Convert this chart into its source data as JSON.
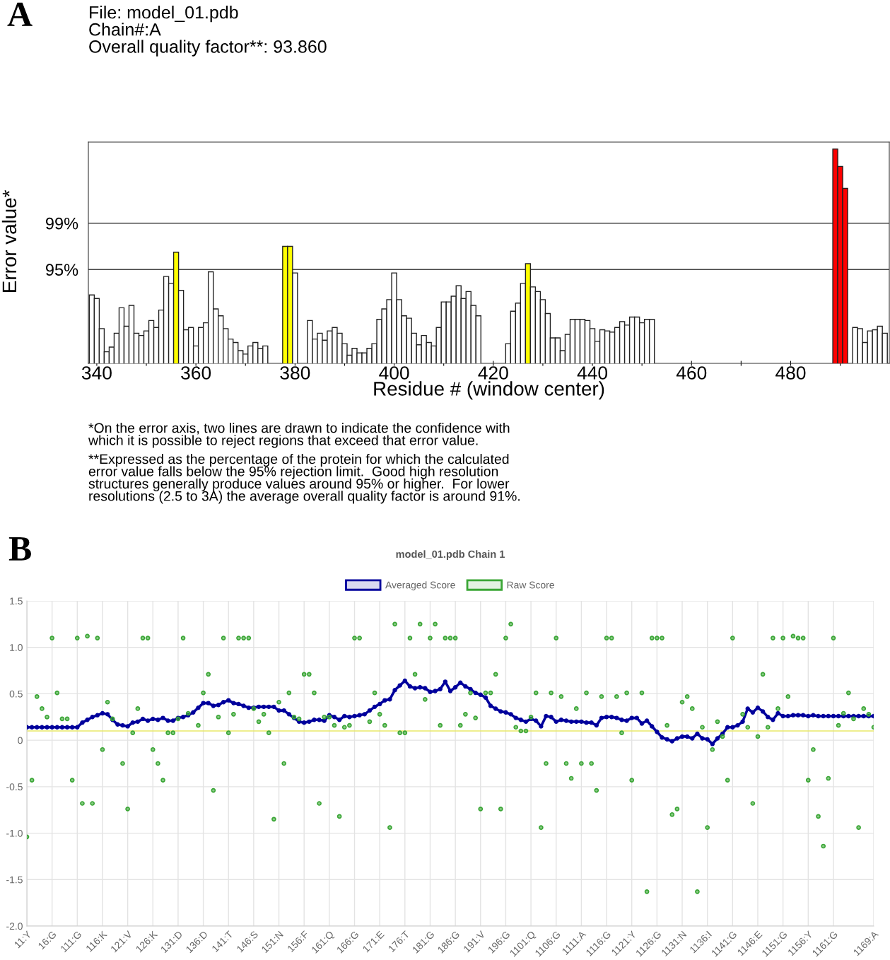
{
  "chart_data": [
    {
      "type": "bar",
      "title": "File: model_01.pdb\nChain#:A\nOverall quality factor**: 93.860",
      "xlabel": "Residue # (window center)",
      "ylabel": "Error value*",
      "annotations": [
        "A",
        "*On the error axis, two lines are drawn to indicate the confidence with\nwhich it is possible to reject regions that exceed that error value.",
        "**Expressed as the percentage of the protein for which the calculated\nerror value falls below the 95% rejection limit.  Good high resolution\nstructures generally produce values around 95% or higher.  For lower\nresolutions (2.5 to 3A) the average overall quality factor is around 91%."
      ],
      "x": [
        339,
        340,
        341,
        342,
        343,
        344,
        345,
        346,
        347,
        348,
        349,
        350,
        351,
        352,
        353,
        354,
        355,
        356,
        357,
        358,
        359,
        360,
        361,
        362,
        363,
        364,
        365,
        366,
        367,
        368,
        369,
        370,
        371,
        372,
        373,
        374,
        375,
        376,
        377,
        378,
        379,
        380,
        381,
        382,
        383,
        384,
        385,
        386,
        387,
        388,
        389,
        390,
        391,
        392,
        393,
        394,
        395,
        396,
        397,
        398,
        399,
        400,
        401,
        402,
        403,
        404,
        405,
        406,
        407,
        408,
        409,
        410,
        411,
        412,
        413,
        414,
        415,
        416,
        417,
        418,
        419,
        420,
        421,
        422,
        423,
        424,
        425,
        426,
        427,
        428,
        429,
        430,
        431,
        432,
        433,
        434,
        435,
        436,
        437,
        438,
        439,
        440,
        441,
        442,
        443,
        444,
        445,
        446,
        447,
        448,
        449,
        450,
        451,
        452,
        453,
        454,
        455,
        456,
        457,
        458,
        459,
        460,
        461,
        462,
        463,
        464,
        465,
        466,
        467,
        468,
        469,
        470,
        471,
        472,
        473,
        474,
        475,
        476,
        477,
        478,
        479,
        480,
        481,
        482,
        483,
        484,
        485,
        486,
        487,
        488,
        489,
        490,
        491,
        492,
        493,
        494,
        495,
        496,
        497,
        498,
        499
      ],
      "values": [
        92.8,
        92.5,
        89.9,
        87.9,
        88.3,
        89.5,
        91.7,
        90.1,
        91.9,
        89.5,
        89.3,
        89.7,
        90.6,
        90.0,
        91.5,
        94.4,
        93.8,
        96.5,
        93.2,
        89.8,
        90.0,
        88.4,
        90.0,
        90.4,
        94.8,
        91.6,
        91.0,
        89.9,
        89.0,
        88.7,
        88.0,
        87.7,
        88.4,
        88.7,
        88.2,
        88.4,
        null,
        null,
        null,
        97.0,
        97.0,
        94.7,
        null,
        null,
        90.6,
        89.0,
        89.5,
        88.9,
        89.7,
        90.0,
        89.5,
        88.6,
        87.6,
        88.2,
        87.8,
        87.8,
        88.2,
        88.6,
        90.7,
        91.6,
        92.4,
        94.7,
        92.4,
        91.0,
        90.8,
        89.5,
        88.5,
        89.3,
        88.7,
        88.4,
        90.0,
        92.2,
        92.2,
        92.7,
        93.6,
        92.5,
        93.1,
        91.9,
        91.0,
        null,
        null,
        null,
        null,
        null,
        88.6,
        91.4,
        92.1,
        93.8,
        95.5,
        93.5,
        93.1,
        92.4,
        91.2,
        89.1,
        89.1,
        88.0,
        89.4,
        90.7,
        90.7,
        90.7,
        90.6,
        89.9,
        88.8,
        89.8,
        89.7,
        89.6,
        90.0,
        90.5,
        90.2,
        90.9,
        90.9,
        90.4,
        90.7,
        90.7,
        null,
        null,
        null,
        null,
        null,
        null,
        null,
        null,
        null,
        null,
        null,
        null,
        null,
        null,
        null,
        null,
        null,
        null,
        null,
        null,
        null,
        null,
        null,
        null,
        null,
        null,
        null,
        null,
        null,
        null,
        null,
        null,
        null,
        null,
        null,
        null,
        105.4,
        103.9,
        102.0,
        null,
        90.0,
        89.9,
        88.7,
        89.7,
        89.8,
        90.1,
        89.5
      ],
      "colors": [
        "#ffffff",
        "#ffffff",
        "#ffffff",
        "#ffffff",
        "#ffffff",
        "#ffffff",
        "#ffffff",
        "#ffffff",
        "#ffffff",
        "#ffffff",
        "#ffffff",
        "#ffffff",
        "#ffffff",
        "#ffffff",
        "#ffffff",
        "#ffffff",
        "#ffffff",
        "#ffff00",
        "#ffffff",
        "#ffffff",
        "#ffffff",
        "#ffffff",
        "#ffffff",
        "#ffffff",
        "#ffffff",
        "#ffffff",
        "#ffffff",
        "#ffffff",
        "#ffffff",
        "#ffffff",
        "#ffffff",
        "#ffffff",
        "#ffffff",
        "#ffffff",
        "#ffffff",
        "#ffffff",
        "#ffffff",
        "#ffffff",
        "#ffffff",
        "#ffff00",
        "#ffff00",
        "#ffffff",
        "#ffffff",
        "#ffffff",
        "#ffffff",
        "#ffffff",
        "#ffffff",
        "#ffffff",
        "#ffffff",
        "#ffffff",
        "#ffffff",
        "#ffffff",
        "#ffffff",
        "#ffffff",
        "#ffffff",
        "#ffffff",
        "#ffffff",
        "#ffffff",
        "#ffffff",
        "#ffffff",
        "#ffffff",
        "#ffffff",
        "#ffffff",
        "#ffffff",
        "#ffffff",
        "#ffffff",
        "#ffffff",
        "#ffffff",
        "#ffffff",
        "#ffffff",
        "#ffffff",
        "#ffffff",
        "#ffffff",
        "#ffffff",
        "#ffffff",
        "#ffffff",
        "#ffffff",
        "#ffffff",
        "#ffffff",
        "#ffffff",
        "#ffffff",
        "#ffffff",
        "#ffffff",
        "#ffffff",
        "#ffffff",
        "#ffffff",
        "#ffffff",
        "#ffffff",
        "#ffff00",
        "#ffffff",
        "#ffffff",
        "#ffffff",
        "#ffffff",
        "#ffffff",
        "#ffffff",
        "#ffffff",
        "#ffffff",
        "#ffffff",
        "#ffffff",
        "#ffffff",
        "#ffffff",
        "#ffffff",
        "#ffffff",
        "#ffffff",
        "#ffffff",
        "#ffffff",
        "#ffffff",
        "#ffffff",
        "#ffffff",
        "#ffffff",
        "#ffffff",
        "#ffffff",
        "#ffffff",
        "#ffffff",
        "#ffffff",
        "#ffffff",
        "#ffffff",
        "#ffffff",
        "#ffffff",
        "#ffffff",
        "#ffffff",
        "#ffffff",
        "#ffffff",
        "#ffffff",
        "#ffffff",
        "#ffffff",
        "#ffffff",
        "#ffffff",
        "#ffffff",
        "#ffffff",
        "#ffffff",
        "#ffffff",
        "#ffffff",
        "#ffffff",
        "#ffffff",
        "#ffffff",
        "#ffffff",
        "#ffffff",
        "#ffffff",
        "#ffffff",
        "#ffffff",
        "#ffffff",
        "#ffffff",
        "#ffffff",
        "#ffffff",
        "#ffffff",
        "#ffffff",
        "#ffffff",
        "#ffffff",
        "#ffffff",
        "#ff0000",
        "#ff0000",
        "#ff0000",
        "#ffffff",
        "#ffffff",
        "#ffffff",
        "#ffffff",
        "#ffffff",
        "#ffffff",
        "#ffffff",
        "#ffffff"
      ],
      "xlim": [
        338.3,
        499.9
      ],
      "xticks": [
        340,
        {
          "value": 350,
          "label": null
        },
        360,
        {
          "value": 370,
          "label": null
        },
        380,
        {
          "value": 390,
          "label": null
        },
        400,
        {
          "value": 410,
          "label": null
        },
        420,
        {
          "value": 430,
          "label": null
        },
        440,
        {
          "value": 450,
          "label": null
        },
        460,
        {
          "value": 470,
          "label": null
        },
        480,
        {
          "value": 490,
          "label": null
        }
      ],
      "ylim": [
        86.9,
        106.0
      ],
      "yticks": [
        {
          "value": 95,
          "label": "95%"
        },
        {
          "value": 99,
          "label": "99%"
        }
      ],
      "grid": "y"
    },
    {
      "type": "line",
      "title": "model_01.pdb Chain 1",
      "annotations": [
        "B"
      ],
      "categories": [
        "11:Y",
        null,
        null,
        null,
        null,
        "16:G",
        null,
        null,
        null,
        null,
        "111:G",
        null,
        null,
        null,
        null,
        "116:K",
        null,
        null,
        null,
        null,
        "121:V",
        null,
        null,
        null,
        null,
        "126:K",
        null,
        null,
        null,
        null,
        "131:D",
        null,
        null,
        null,
        null,
        "136:D",
        null,
        null,
        null,
        null,
        "141:T",
        null,
        null,
        null,
        null,
        "146:S",
        null,
        null,
        null,
        null,
        "151:N",
        null,
        null,
        null,
        null,
        "156:F",
        null,
        null,
        null,
        null,
        "161:Q",
        null,
        null,
        null,
        null,
        "166:G",
        null,
        null,
        null,
        null,
        "171:E",
        null,
        null,
        null,
        null,
        "176:T",
        null,
        null,
        null,
        null,
        "181:G",
        null,
        null,
        null,
        null,
        "186:G",
        null,
        null,
        null,
        null,
        "191:V",
        null,
        null,
        null,
        null,
        "196:G",
        null,
        null,
        null,
        null,
        "1101:Q",
        null,
        null,
        null,
        null,
        "1106:G",
        null,
        null,
        null,
        null,
        "1111:A",
        null,
        null,
        null,
        null,
        "1116:G",
        null,
        null,
        null,
        null,
        "1121:Y",
        null,
        null,
        null,
        null,
        "1126:G",
        null,
        null,
        null,
        null,
        "1131:N",
        null,
        null,
        null,
        null,
        "1136:I",
        null,
        null,
        null,
        null,
        "1141:G",
        null,
        null,
        null,
        null,
        "1146:E",
        null,
        null,
        null,
        null,
        "1151:G",
        null,
        null,
        null,
        null,
        "1156:Y",
        null,
        null,
        null,
        null,
        "1161:G",
        null,
        null,
        null,
        null,
        null,
        null,
        null,
        "1169:A"
      ],
      "series": [
        {
          "name": "Averaged Score",
          "type": "line",
          "color": "#00009c",
          "marker": "circle",
          "values": [
            0.14,
            0.14,
            0.14,
            0.14,
            0.14,
            0.14,
            0.14,
            0.14,
            0.14,
            0.14,
            0.14,
            0.19,
            0.22,
            0.25,
            0.27,
            0.29,
            0.28,
            0.22,
            0.17,
            0.16,
            0.15,
            0.19,
            0.2,
            0.23,
            0.21,
            0.23,
            0.22,
            0.24,
            0.21,
            0.21,
            0.24,
            0.25,
            0.27,
            0.3,
            0.35,
            0.4,
            0.4,
            0.37,
            0.38,
            0.41,
            0.43,
            0.4,
            0.39,
            0.37,
            0.35,
            0.35,
            0.36,
            0.36,
            0.36,
            0.36,
            0.32,
            0.32,
            0.28,
            0.24,
            0.2,
            0.19,
            0.2,
            0.22,
            0.22,
            0.21,
            0.27,
            0.25,
            0.22,
            0.26,
            0.25,
            0.26,
            0.27,
            0.28,
            0.32,
            0.36,
            0.39,
            0.43,
            0.44,
            0.54,
            0.59,
            0.64,
            0.58,
            0.56,
            0.57,
            0.56,
            0.52,
            0.53,
            0.55,
            0.63,
            0.53,
            0.57,
            0.62,
            0.58,
            0.55,
            0.51,
            0.49,
            0.46,
            0.37,
            0.34,
            0.31,
            0.3,
            0.28,
            0.24,
            0.22,
            0.2,
            0.23,
            0.21,
            0.15,
            0.26,
            0.25,
            0.2,
            0.22,
            0.21,
            0.2,
            0.2,
            0.2,
            0.19,
            0.19,
            0.16,
            0.24,
            0.25,
            0.25,
            0.24,
            0.22,
            0.21,
            0.24,
            0.24,
            0.18,
            0.21,
            0.15,
            0.09,
            0.03,
            0.01,
            -0.01,
            0.02,
            0.04,
            0.04,
            0.02,
            0.07,
            0.02,
            0.01,
            -0.04,
            0.02,
            0.07,
            0.14,
            0.14,
            0.16,
            0.2,
            0.34,
            0.3,
            0.35,
            0.31,
            0.25,
            0.22,
            0.29,
            0.26,
            0.26,
            0.27,
            0.27,
            0.27,
            0.26,
            0.27,
            0.26,
            0.26,
            0.26,
            0.26,
            0.26,
            0.26,
            0.26,
            0.26,
            0.26,
            0.26,
            0.26,
            0.26
          ]
        },
        {
          "name": "Raw Score",
          "type": "scatter",
          "color": "#3aa635",
          "marker": "circle",
          "values": [
            -1.04,
            -0.43,
            0.47,
            0.34,
            0.25,
            1.1,
            0.51,
            0.23,
            0.23,
            -0.43,
            1.1,
            -0.68,
            1.12,
            -0.68,
            1.1,
            -0.1,
            0.41,
            0.23,
            null,
            -0.25,
            -0.74,
            0.08,
            0.34,
            1.1,
            1.1,
            -0.1,
            -0.25,
            -0.43,
            0.08,
            0.08,
            0.23,
            1.1,
            0.29,
            null,
            0.16,
            0.51,
            0.71,
            -0.54,
            0.25,
            1.1,
            0.08,
            0.28,
            1.1,
            1.1,
            1.1,
            0.34,
            0.2,
            0.28,
            0.08,
            -0.85,
            0.41,
            -0.25,
            0.51,
            0.25,
            0.23,
            0.71,
            0.71,
            0.51,
            -0.68,
            0.25,
            0.25,
            0.16,
            -0.82,
            0.14,
            0.16,
            1.1,
            1.1,
            null,
            0.2,
            0.51,
            0.28,
            0.16,
            -0.94,
            1.25,
            0.08,
            0.08,
            1.1,
            0.71,
            1.25,
            0.44,
            1.1,
            1.25,
            0.16,
            1.1,
            1.1,
            1.1,
            0.16,
            0.28,
            0.51,
            0.24,
            -0.74,
            0.51,
            0.51,
            0.71,
            -0.74,
            1.1,
            1.25,
            0.14,
            0.1,
            0.1,
            0.25,
            0.51,
            -0.94,
            -0.25,
            0.51,
            1.1,
            0.47,
            -0.25,
            -0.41,
            0.34,
            -0.25,
            0.51,
            -0.25,
            -0.54,
            0.47,
            1.1,
            1.1,
            0.47,
            0.08,
            0.51,
            -0.43,
            null,
            0.51,
            -1.63,
            1.1,
            1.1,
            1.1,
            0.16,
            -0.8,
            -0.74,
            0.41,
            0.47,
            0.34,
            -1.63,
            0.14,
            -0.94,
            -0.1,
            0.2,
            0.04,
            -0.43,
            1.1,
            null,
            0.28,
            0.14,
            -0.68,
            0.04,
            0.71,
            0.14,
            1.1,
            0.34,
            1.1,
            0.47,
            1.12,
            1.1,
            1.1,
            -0.43,
            -0.1,
            -0.82,
            -1.14,
            -0.41,
            1.1,
            0.16,
            0.29,
            0.51,
            0.23,
            -0.94,
            0.34,
            0.28,
            0.14
          ]
        }
      ],
      "ylim": [
        -2.0,
        1.5
      ],
      "yticks": [
        {
          "value": -2.0,
          "label": "-2.0"
        },
        -1.5,
        {
          "value": -1.0,
          "label": "-1.0"
        },
        -0.5,
        0,
        0.5,
        {
          "value": 1.0,
          "label": "1.0"
        },
        1.5
      ],
      "ref_lines": [
        {
          "axis": "y",
          "value": 0.1,
          "color": "#e8e86a"
        }
      ],
      "grid": true,
      "legend": "top"
    }
  ]
}
